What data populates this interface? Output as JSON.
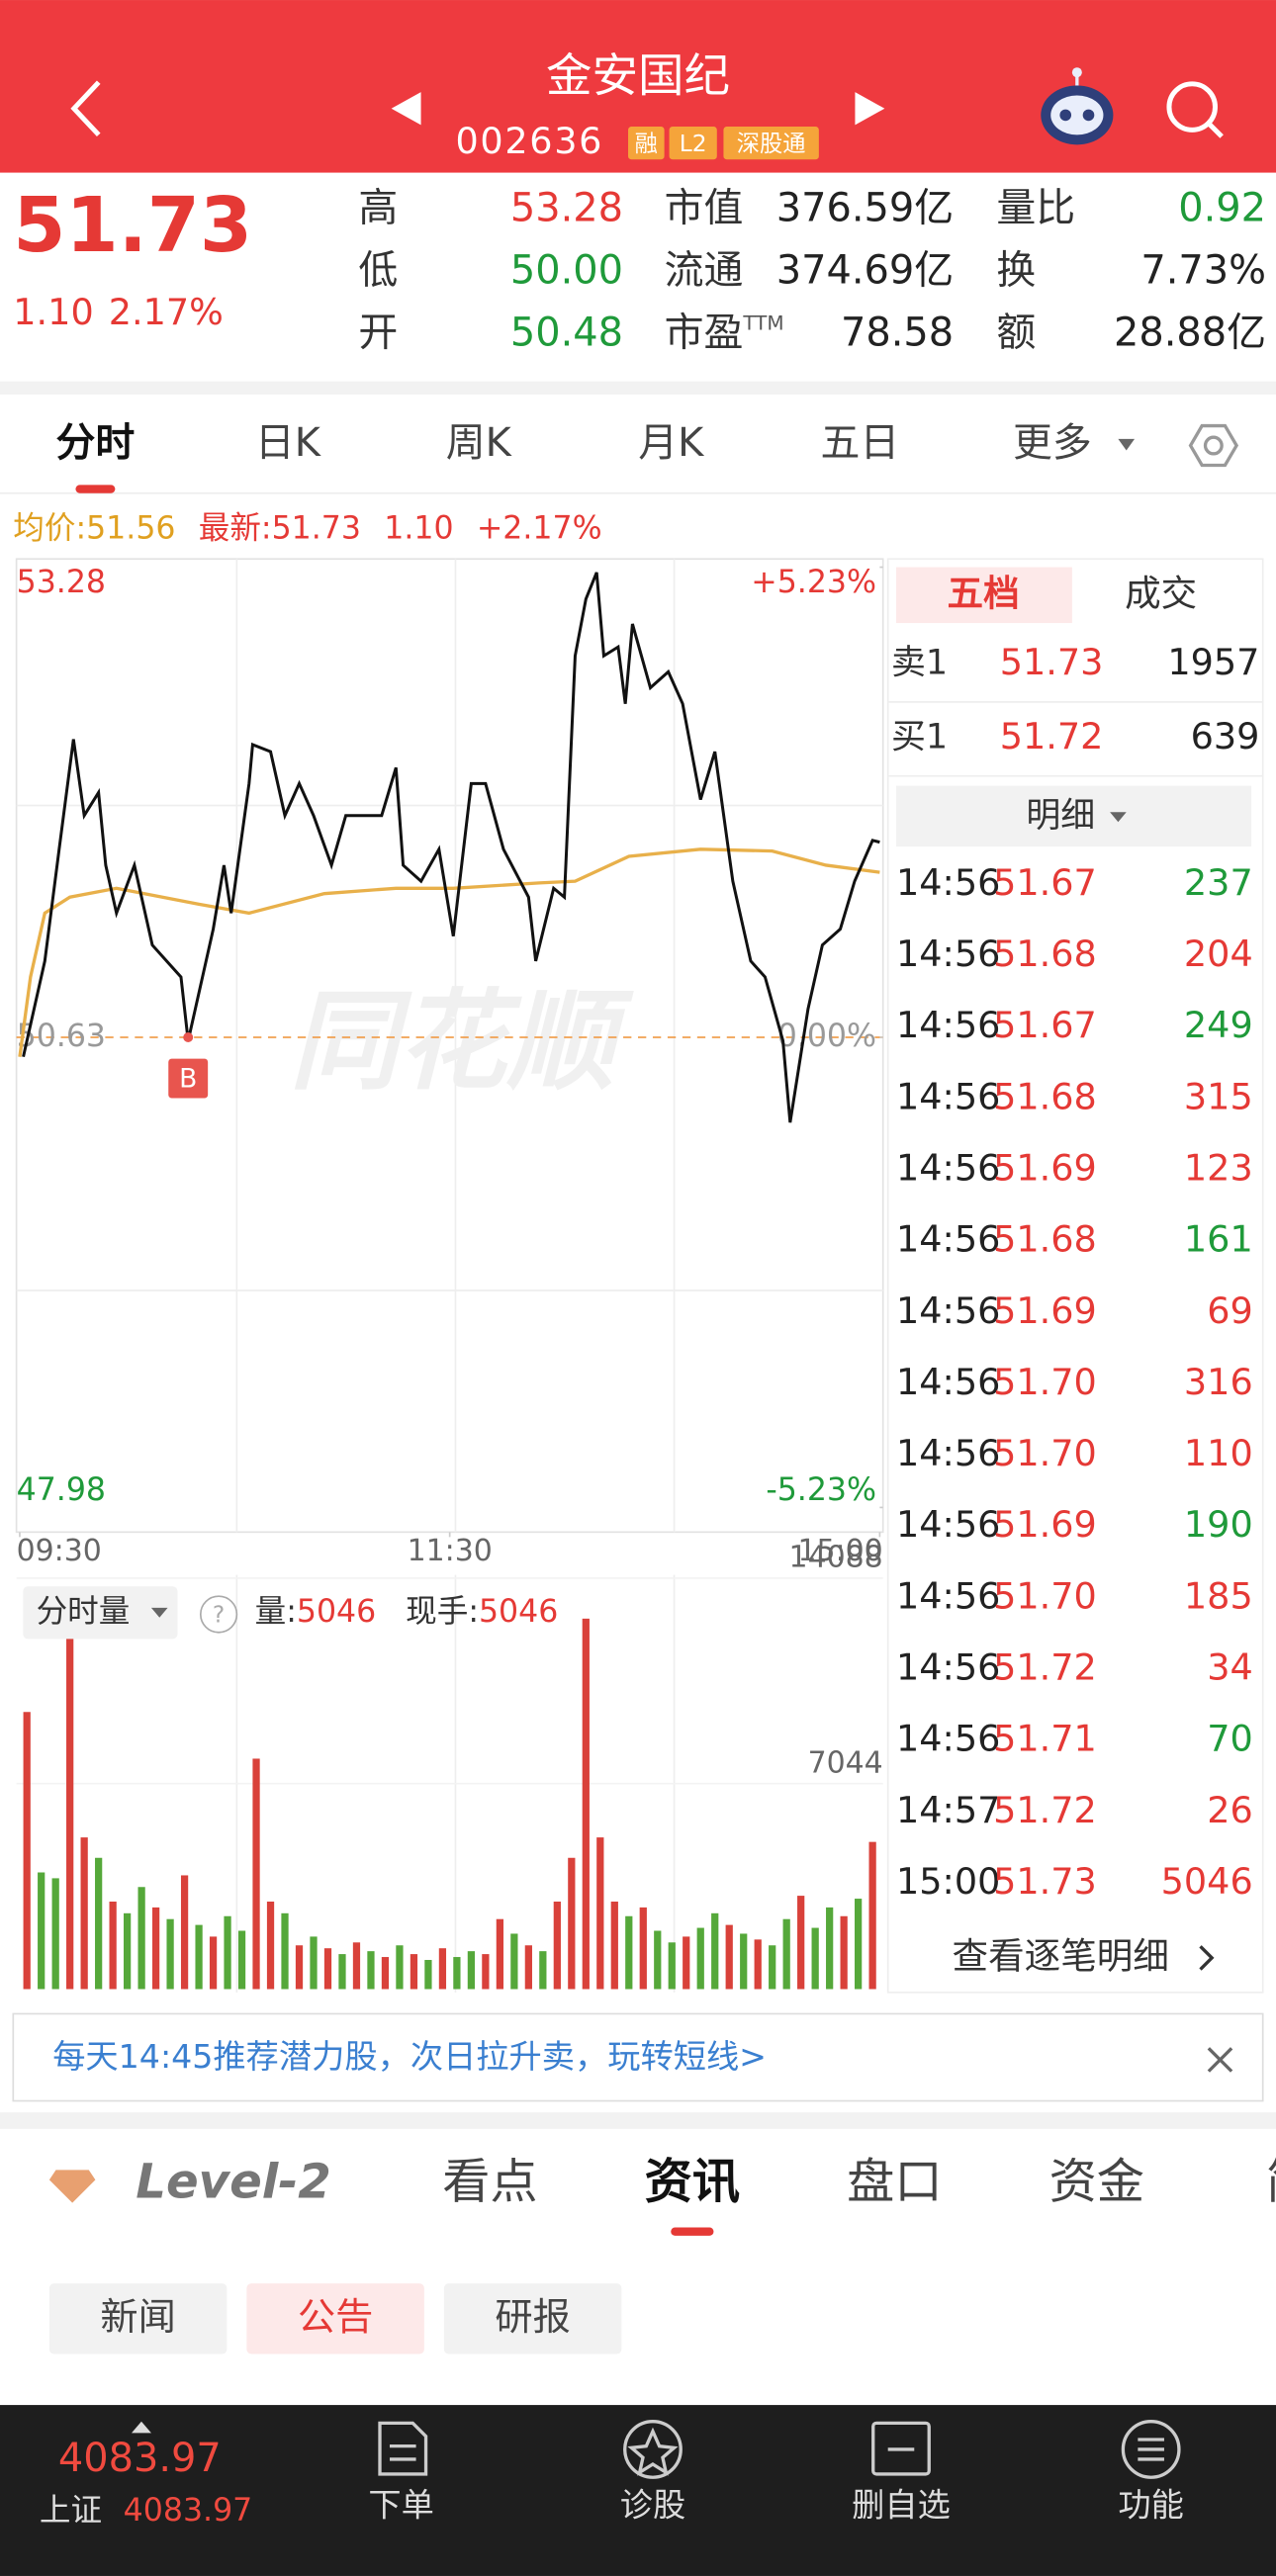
{
  "header": {
    "title": "金安国纪",
    "code": "002636",
    "badges": [
      "融",
      "L2",
      "深股通"
    ]
  },
  "quote": {
    "price": "51.73",
    "change": "1.10",
    "change_pct": "2.17%",
    "stats": [
      {
        "label": "高",
        "value": "53.28",
        "color": "#e53935"
      },
      {
        "label": "低",
        "value": "50.00",
        "color": "#1f9a3a"
      },
      {
        "label": "开",
        "value": "50.48",
        "color": "#1f9a3a"
      },
      {
        "label": "市值",
        "value": "376.59亿",
        "color": "#222222"
      },
      {
        "label": "流通",
        "value": "374.69亿",
        "color": "#222222"
      },
      {
        "label": "市盈",
        "sup": "TTM",
        "value": "78.58",
        "color": "#222222"
      },
      {
        "label": "量比",
        "value": "0.92",
        "color": "#1f9a3a"
      },
      {
        "label": "换",
        "value": "7.73%",
        "color": "#222222"
      },
      {
        "label": "额",
        "value": "28.88亿",
        "color": "#222222"
      }
    ]
  },
  "tabs": {
    "items": [
      "分时",
      "日K",
      "周K",
      "月K",
      "五日",
      "更多"
    ],
    "active": 0
  },
  "summary": {
    "avg_label": "均价:",
    "avg": "51.56",
    "last_label": "最新:",
    "last": "51.73",
    "change": "1.10",
    "change_pct": "+2.17%"
  },
  "chart_data": [
    {
      "type": "line",
      "xlim": [
        0,
        240
      ],
      "xticks": [
        {
          "value": 0,
          "label": "09:30"
        },
        {
          "value": 120,
          "label": "11:30"
        },
        {
          "value": 240,
          "label": "15:00"
        }
      ],
      "ylim": [
        47.98,
        53.28
      ],
      "yticks": [
        53.28,
        50.63,
        47.98
      ],
      "y2lim": [
        -5.23,
        5.23
      ],
      "y2ticks": [
        {
          "value": 5.23,
          "label": "+5.23%"
        },
        {
          "value": 0,
          "label": "0.00%"
        },
        {
          "value": -5.23,
          "label": "-5.23%"
        }
      ],
      "watermark": "同花顺",
      "price_line": {
        "color": "#111111",
        "x": [
          1,
          7,
          11,
          15,
          18,
          22,
          24,
          27,
          32,
          37,
          41,
          45,
          47,
          49,
          54,
          57,
          59,
          64,
          65,
          70,
          74,
          78,
          82,
          87,
          91,
          96,
          101,
          105,
          107,
          112,
          117,
          121,
          126,
          130,
          135,
          142,
          144,
          149,
          152,
          155,
          158,
          161,
          163,
          167,
          169,
          171,
          176,
          181,
          185,
          190,
          194,
          199,
          204,
          208,
          213,
          215,
          220,
          224,
          229,
          233,
          238,
          240
        ],
        "values": [
          50.52,
          51.06,
          51.69,
          52.31,
          51.88,
          52.01,
          51.6,
          51.33,
          51.6,
          51.15,
          51.06,
          50.97,
          50.61,
          50.79,
          51.24,
          51.6,
          51.33,
          52.06,
          52.28,
          52.24,
          51.88,
          52.06,
          51.88,
          51.6,
          51.88,
          51.88,
          51.88,
          52.15,
          51.6,
          51.51,
          51.69,
          51.2,
          52.06,
          52.06,
          51.69,
          51.42,
          51.06,
          51.47,
          51.42,
          52.78,
          53.1,
          53.25,
          52.78,
          52.83,
          52.51,
          52.96,
          52.6,
          52.69,
          52.51,
          51.97,
          52.24,
          51.51,
          51.06,
          50.97,
          50.61,
          50.15,
          50.79,
          51.15,
          51.24,
          51.51,
          51.74,
          51.73
        ]
      },
      "avg_line": {
        "color": "#e8b04a",
        "x": [
          0,
          3,
          7,
          14,
          27,
          50,
          64,
          85,
          105,
          121,
          145,
          155,
          170,
          190,
          210,
          225,
          240
        ],
        "values": [
          50.52,
          50.97,
          51.33,
          51.42,
          51.47,
          51.38,
          51.33,
          51.44,
          51.47,
          51.47,
          51.5,
          51.51,
          51.65,
          51.69,
          51.68,
          51.6,
          51.56
        ]
      },
      "annotations": [
        {
          "text": "B",
          "x": 47,
          "y": 50.63,
          "color": "#e8554e"
        }
      ]
    },
    {
      "type": "bar",
      "ylim": [
        0,
        14088
      ],
      "yticks": [
        7044,
        14088
      ],
      "values": [
        9500,
        4000,
        3800,
        12100,
        5200,
        4500,
        3000,
        2600,
        3500,
        2800,
        2400,
        3900,
        2200,
        1800,
        2500,
        2000,
        7900,
        3000,
        2600,
        1500,
        1800,
        1400,
        1200,
        1600,
        1300,
        1100,
        1500,
        1200,
        1000,
        1400,
        1100,
        1300,
        1200,
        2400,
        1900,
        1500,
        1300,
        3000,
        4500,
        12700,
        5200,
        3000,
        2500,
        2800,
        2000,
        1600,
        1800,
        2100,
        2600,
        2200,
        1900,
        1700,
        1500,
        2400,
        3200,
        2100,
        2800,
        2500,
        3100,
        5046
      ],
      "colors": [
        "#d9413a",
        "#55a83a",
        "#55a83a",
        "#d9413a",
        "#d9413a",
        "#55a83a",
        "#d9413a",
        "#55a83a",
        "#55a83a",
        "#d9413a",
        "#55a83a",
        "#d9413a",
        "#55a83a",
        "#d9413a",
        "#55a83a",
        "#55a83a",
        "#d9413a",
        "#d9413a",
        "#55a83a",
        "#d9413a",
        "#55a83a",
        "#d9413a",
        "#55a83a",
        "#d9413a",
        "#55a83a",
        "#d9413a",
        "#55a83a",
        "#d9413a",
        "#55a83a",
        "#d9413a",
        "#55a83a",
        "#55a83a",
        "#d9413a",
        "#d9413a",
        "#55a83a",
        "#d9413a",
        "#55a83a",
        "#d9413a",
        "#d9413a",
        "#d9413a",
        "#d9413a",
        "#d9413a",
        "#55a83a",
        "#d9413a",
        "#55a83a",
        "#55a83a",
        "#d9413a",
        "#55a83a",
        "#55a83a",
        "#d9413a",
        "#55a83a",
        "#d9413a",
        "#55a83a",
        "#55a83a",
        "#d9413a",
        "#55a83a",
        "#55a83a",
        "#d9413a",
        "#55a83a",
        "#d9413a"
      ],
      "selector": "分时量",
      "volume_label": "量:",
      "volume": "5046",
      "hand_label": "现手:",
      "hand": "5046"
    }
  ],
  "order_book": {
    "tabs": [
      "五档",
      "成交"
    ],
    "rows": [
      {
        "side": "卖1",
        "price": "51.73",
        "volume": "1957"
      },
      {
        "side": "买1",
        "price": "51.72",
        "volume": "639"
      }
    ],
    "detail_label": "明细",
    "trades": [
      [
        "14:56",
        "51.67",
        "237",
        "#1f9a3a"
      ],
      [
        "14:56",
        "51.68",
        "204",
        "#e53935"
      ],
      [
        "14:56",
        "51.67",
        "249",
        "#1f9a3a"
      ],
      [
        "14:56",
        "51.68",
        "315",
        "#e53935"
      ],
      [
        "14:56",
        "51.69",
        "123",
        "#e53935"
      ],
      [
        "14:56",
        "51.68",
        "161",
        "#1f9a3a"
      ],
      [
        "14:56",
        "51.69",
        "69",
        "#e53935"
      ],
      [
        "14:56",
        "51.70",
        "316",
        "#e53935"
      ],
      [
        "14:56",
        "51.70",
        "110",
        "#e53935"
      ],
      [
        "14:56",
        "51.69",
        "190",
        "#1f9a3a"
      ],
      [
        "14:56",
        "51.70",
        "185",
        "#e53935"
      ],
      [
        "14:56",
        "51.72",
        "34",
        "#e53935"
      ],
      [
        "14:56",
        "51.71",
        "70",
        "#1f9a3a"
      ],
      [
        "14:57",
        "51.72",
        "26",
        "#e53935"
      ],
      [
        "15:00",
        "51.73",
        "5046",
        "#e53935"
      ]
    ],
    "more": "查看逐笔明细"
  },
  "banner": "每天14:45推荐潜力股，次日拉升卖，玩转短线>",
  "info_tabs": {
    "items": [
      "Level-2",
      "看点",
      "资讯",
      "盘口",
      "资金",
      "简"
    ],
    "active": 2
  },
  "sub_tabs": {
    "items": [
      "新闻",
      "公告",
      "研报"
    ],
    "active": 1
  },
  "bottom_nav": {
    "index_value": "4083.97",
    "index_name": "上证",
    "index_small": "4083.97",
    "items": [
      "下单",
      "诊股",
      "删自选",
      "功能"
    ]
  }
}
